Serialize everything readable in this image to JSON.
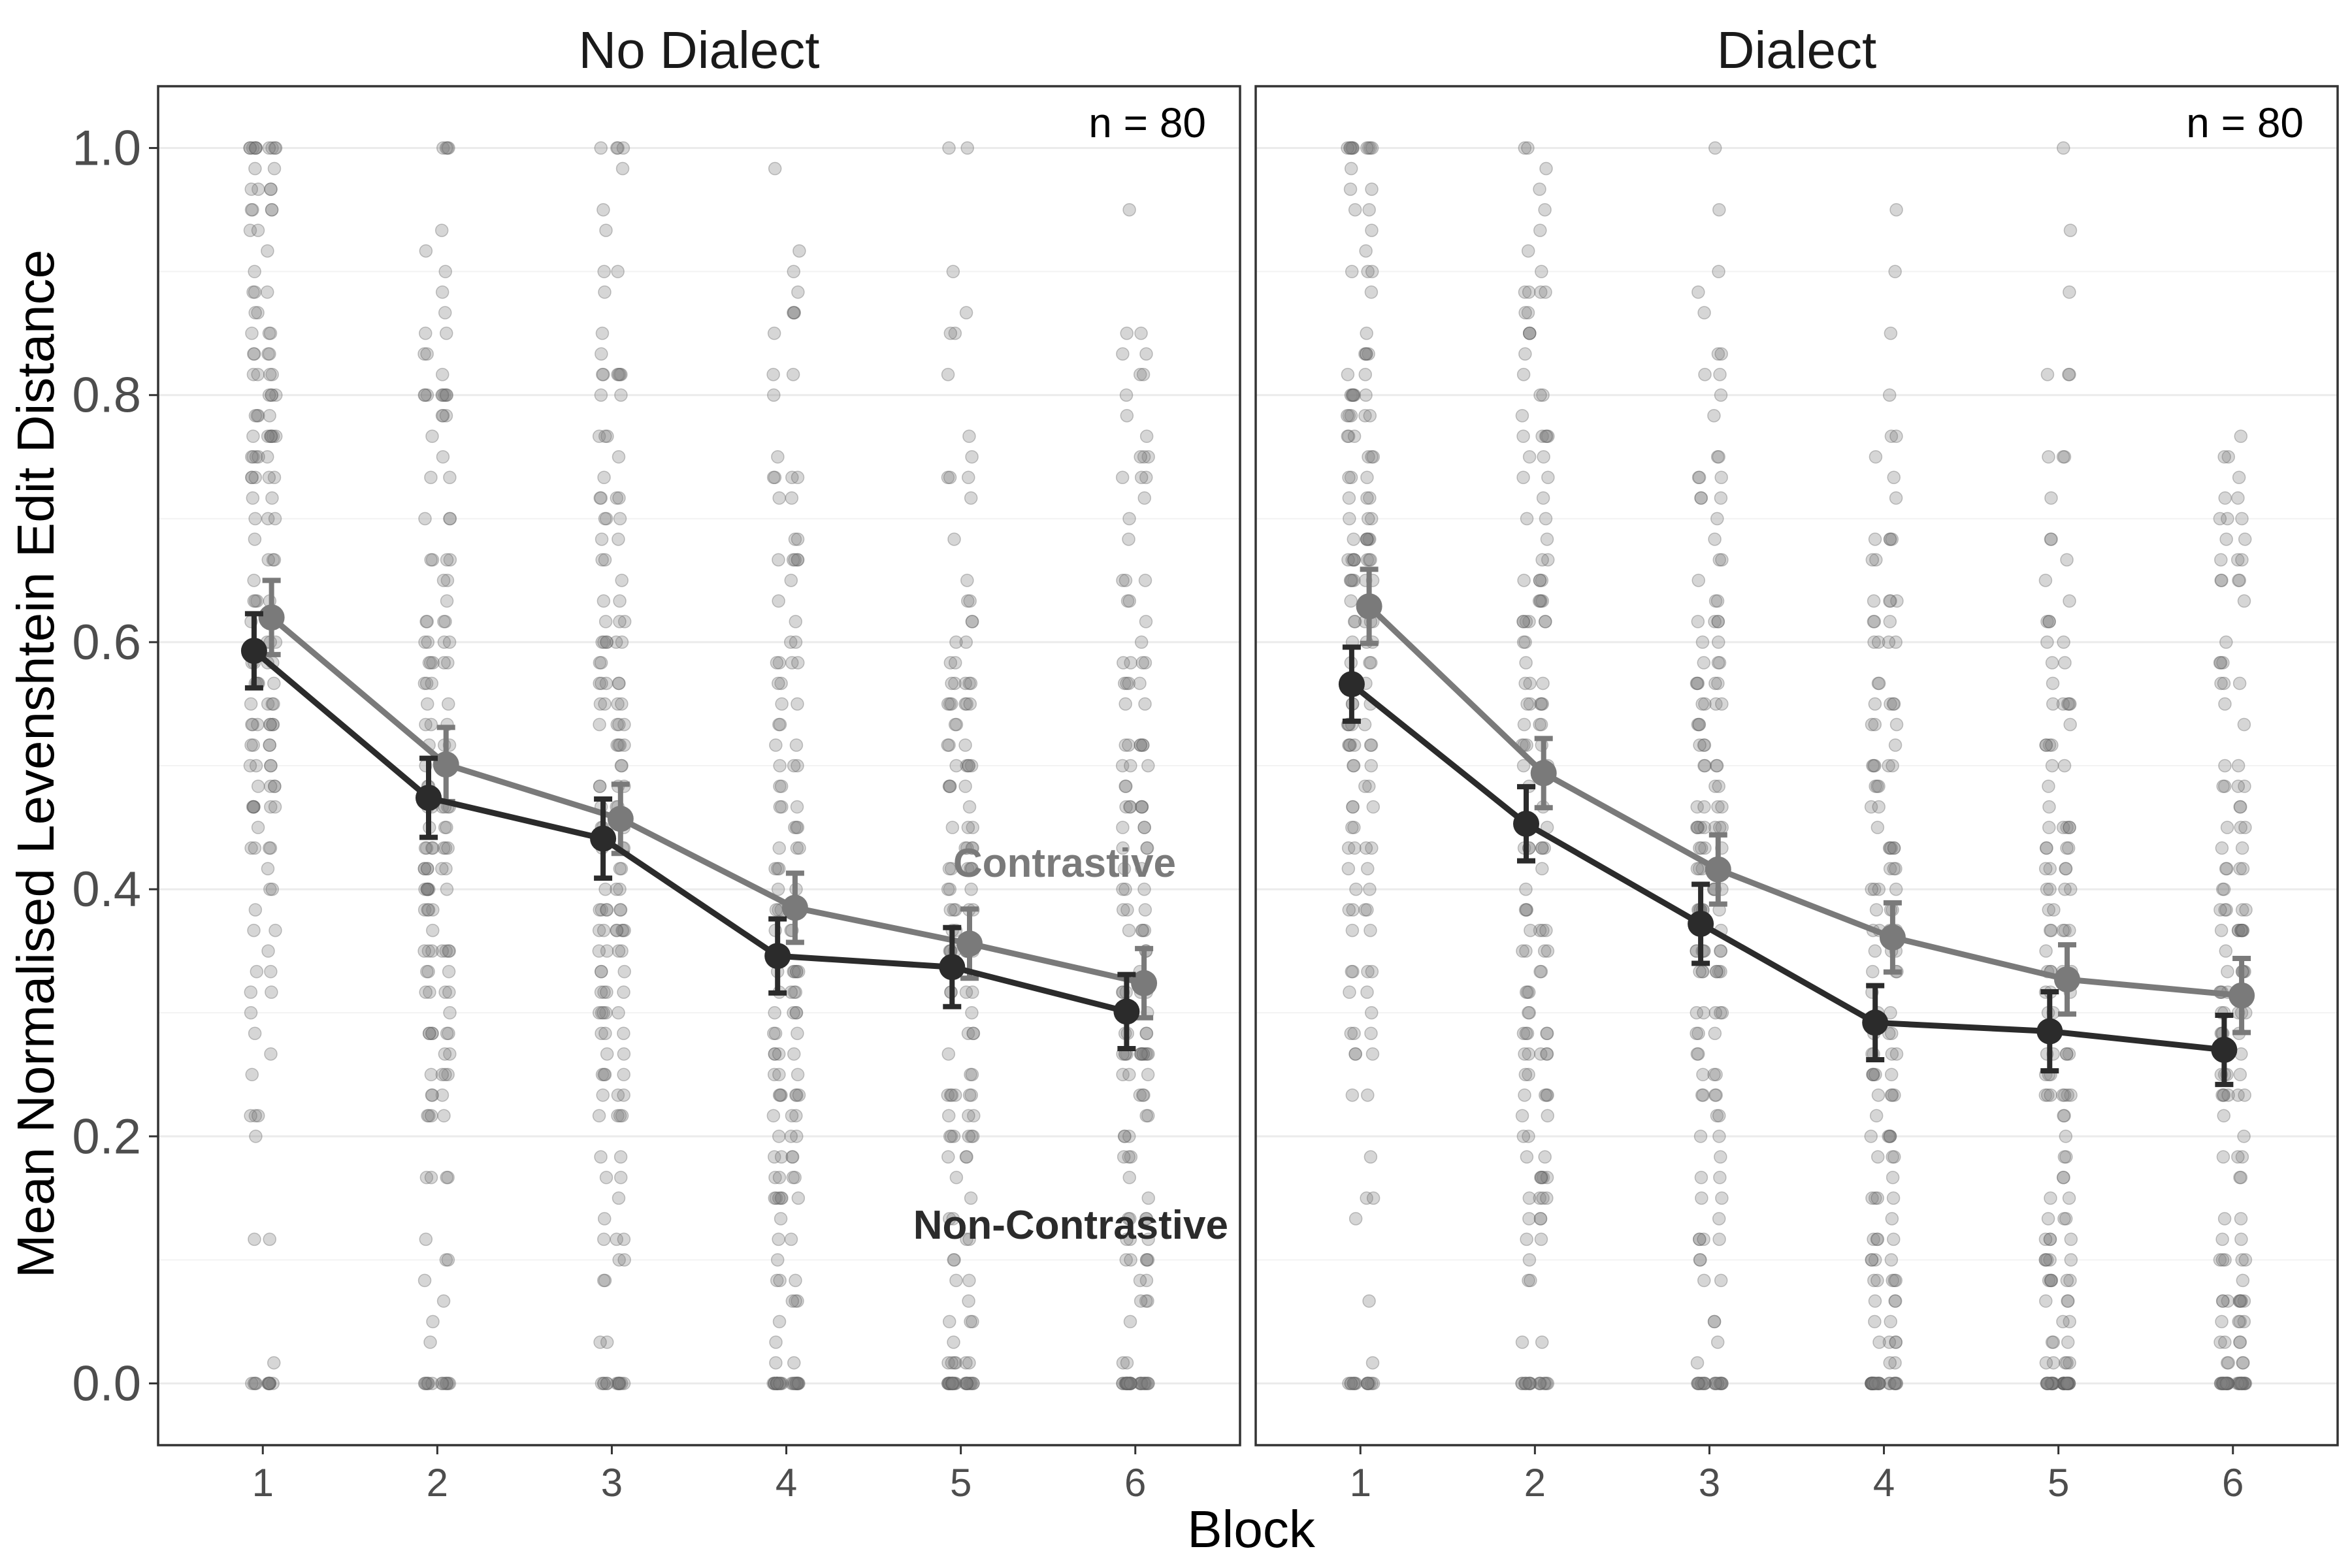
{
  "chart_data": {
    "type": "line",
    "xlabel": "Block",
    "ylabel": "Mean Normalised Levenshtein Edit Distance",
    "ylim": [
      -0.05,
      1.05
    ],
    "y_ticks": [
      "0.0",
      "0.2",
      "0.4",
      "0.6",
      "0.8",
      "1.0"
    ],
    "x_ticks": [
      "1",
      "2",
      "3",
      "4",
      "5",
      "6"
    ],
    "grid": true,
    "colors": {
      "Contrastive": "#7a7a7a",
      "Non-Contrastive": "#2b2b2b",
      "points": "#808080"
    },
    "panels": [
      {
        "title": "No Dialect",
        "n_label": "n =  80",
        "series": [
          {
            "name": "Contrastive",
            "x": [
              1,
              2,
              3,
              4,
              5,
              6
            ],
            "values": [
              0.62,
              0.501,
              0.457,
              0.385,
              0.356,
              0.324
            ],
            "error": [
              0.03,
              0.03,
              0.028,
              0.028,
              0.028,
              0.028
            ]
          },
          {
            "name": "Non-Contrastive",
            "x": [
              1,
              2,
              3,
              4,
              5,
              6
            ],
            "values": [
              0.593,
              0.474,
              0.441,
              0.346,
              0.337,
              0.301
            ],
            "error": [
              0.03,
              0.032,
              0.032,
              0.03,
              0.032,
              0.03
            ]
          }
        ],
        "series_labels": [
          {
            "text": "Contrastive",
            "series": "Contrastive"
          },
          {
            "text": "Non-Contrastive",
            "series": "Non-Contrastive"
          }
        ]
      },
      {
        "title": "Dialect",
        "n_label": "n =  80",
        "series": [
          {
            "name": "Contrastive",
            "x": [
              1,
              2,
              3,
              4,
              5,
              6
            ],
            "values": [
              0.629,
              0.494,
              0.416,
              0.361,
              0.327,
              0.314
            ],
            "error": [
              0.03,
              0.028,
              0.028,
              0.028,
              0.028,
              0.03
            ]
          },
          {
            "name": "Non-Contrastive",
            "x": [
              1,
              2,
              3,
              4,
              5,
              6
            ],
            "values": [
              0.566,
              0.453,
              0.372,
              0.292,
              0.285,
              0.27
            ],
            "error": [
              0.03,
              0.03,
              0.032,
              0.03,
              0.032,
              0.028
            ]
          }
        ],
        "series_labels": []
      }
    ]
  }
}
